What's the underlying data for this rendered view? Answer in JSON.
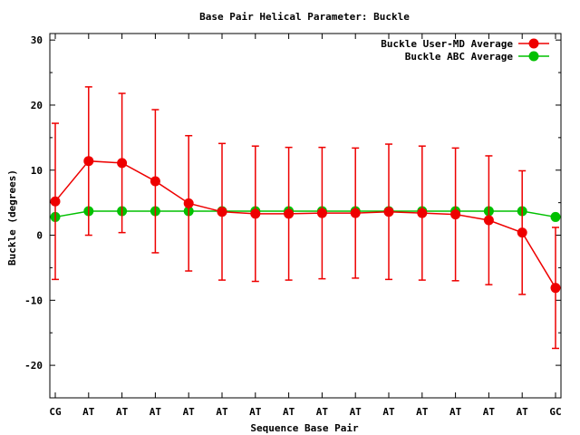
{
  "chart_data": {
    "type": "line",
    "title": "Base Pair Helical Parameter: Buckle",
    "xlabel": "Sequence Base Pair",
    "ylabel": "Buckle (degrees)",
    "categories": [
      "CG",
      "AT",
      "AT",
      "AT",
      "AT",
      "AT",
      "AT",
      "AT",
      "AT",
      "AT",
      "AT",
      "AT",
      "AT",
      "AT",
      "AT",
      "GC"
    ],
    "ylim": [
      -25,
      31
    ],
    "yticks": [
      30,
      20,
      10,
      0,
      -10,
      -20
    ],
    "grid": false,
    "legend_position": "top-right",
    "series": [
      {
        "name": "Buckle User-MD Average",
        "color": "#ee0000",
        "values": [
          5.2,
          11.4,
          11.1,
          8.3,
          4.9,
          3.6,
          3.3,
          3.3,
          3.4,
          3.4,
          3.6,
          3.4,
          3.2,
          2.3,
          0.4,
          -8.1
        ],
        "err": [
          12.0,
          11.4,
          10.7,
          11.0,
          10.4,
          10.5,
          10.4,
          10.2,
          10.1,
          10.0,
          10.4,
          10.3,
          10.2,
          9.9,
          9.5,
          9.3
        ]
      },
      {
        "name": "Buckle ABC Average",
        "color": "#00c000",
        "values": [
          2.8,
          3.7,
          3.7,
          3.7,
          3.7,
          3.7,
          3.7,
          3.7,
          3.7,
          3.7,
          3.7,
          3.7,
          3.7,
          3.7,
          3.7,
          2.8
        ]
      }
    ]
  }
}
